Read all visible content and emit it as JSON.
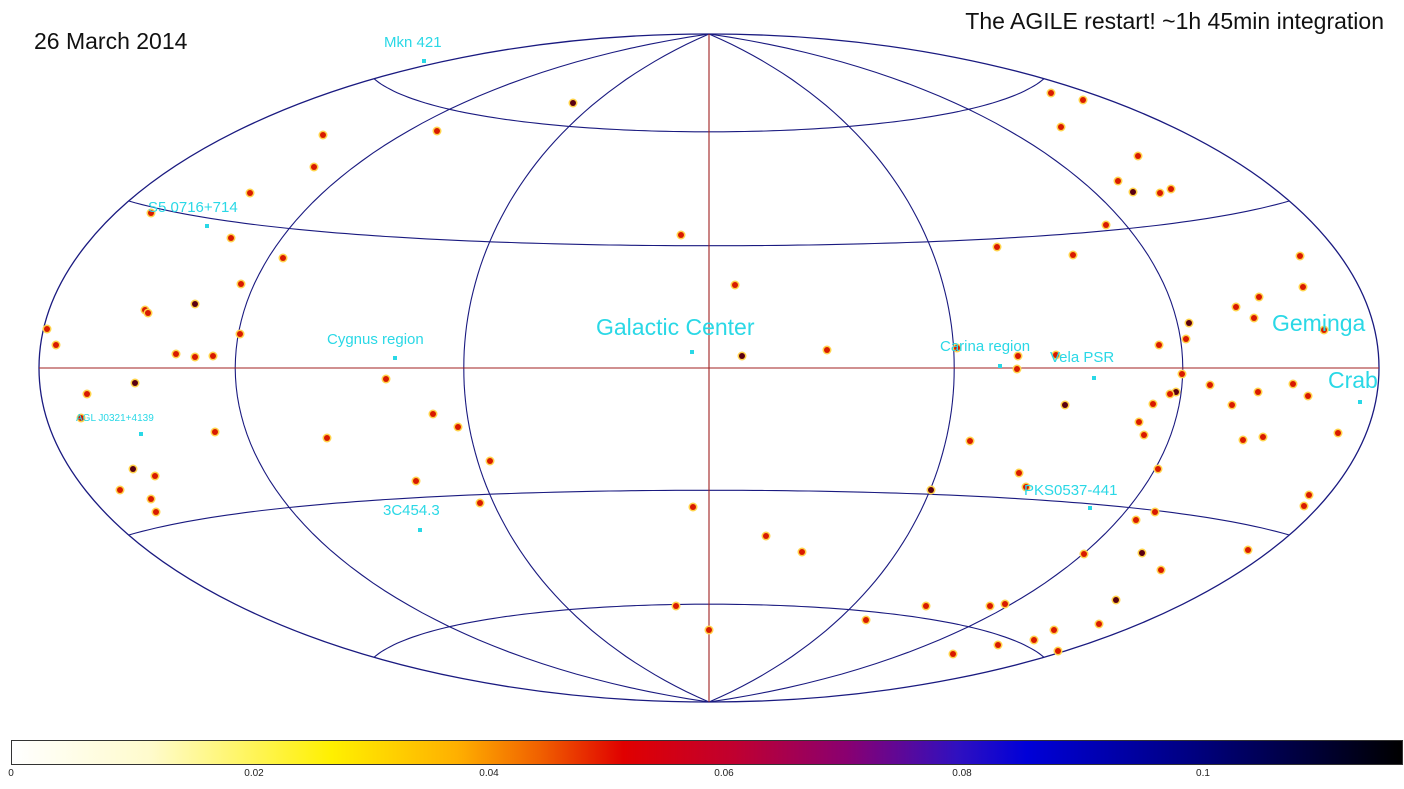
{
  "date": "26 March 2014",
  "title": "The AGILE restart!  ~1h 45min integration",
  "colors": {
    "grid": "#1a1a80",
    "center_lines": "#a02020",
    "source_label": "#2ad8e6"
  },
  "source_labels": [
    {
      "name": "Mkn 421",
      "size": "small"
    },
    {
      "name": "S5 0716+714",
      "size": "small"
    },
    {
      "name": "Cygnus region",
      "size": "small"
    },
    {
      "name": "Galactic Center",
      "size": "large"
    },
    {
      "name": "Carina region",
      "size": "small"
    },
    {
      "name": "Vela PSR",
      "size": "small"
    },
    {
      "name": "Geminga",
      "size": "large"
    },
    {
      "name": "Crab",
      "size": "large"
    },
    {
      "name": "AGL J0321+4139",
      "size": "tiny"
    },
    {
      "name": "3C454.3",
      "size": "small"
    },
    {
      "name": "PKS0537-441",
      "size": "small"
    }
  ],
  "colorbar": {
    "ticks": [
      "0",
      "0.02",
      "0.04",
      "0.06",
      "0.08",
      "0.1"
    ]
  }
}
